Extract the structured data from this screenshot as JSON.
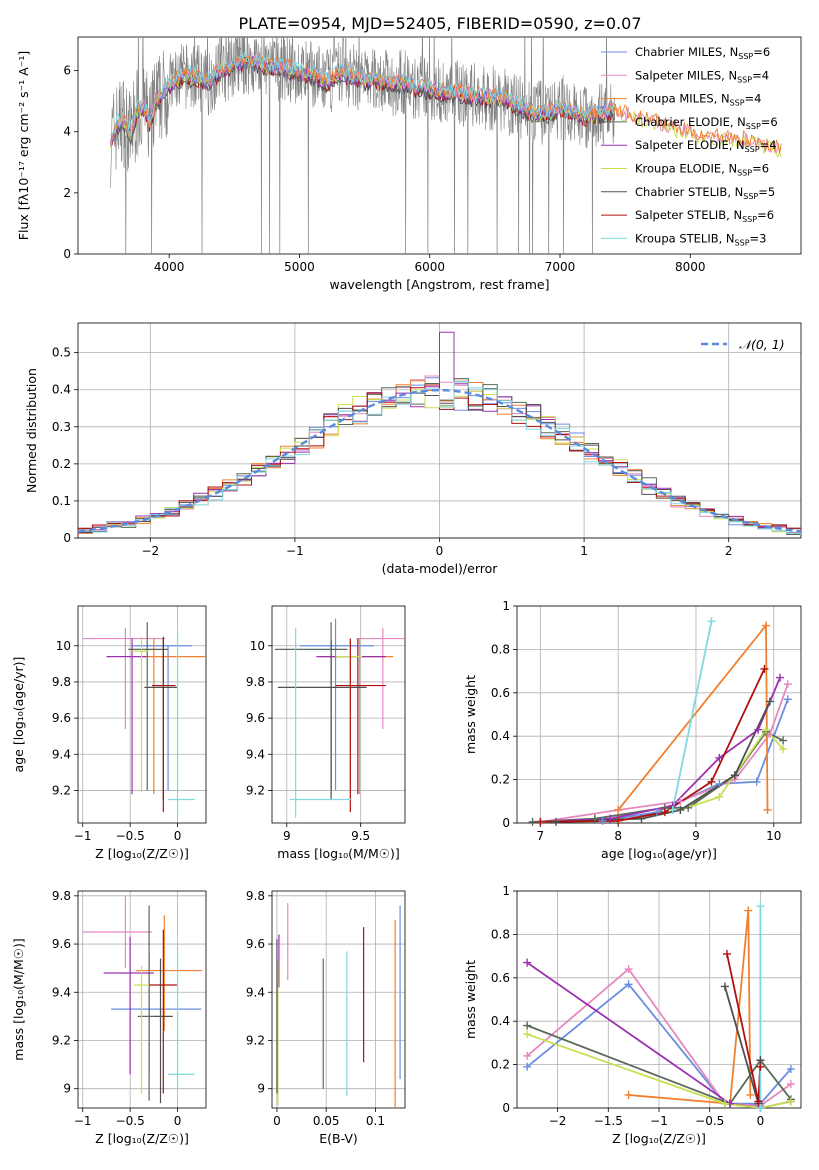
{
  "figure_title": "PLATE=0954, MJD=52405, FIBERID=0590, z=0.07",
  "colors": [
    "#6a8ee0",
    "#e589c0",
    "#f08030",
    "#5a6a5a",
    "#9b30b0",
    "#c8e050",
    "#505050",
    "#b01010",
    "#80d8e0"
  ],
  "chart_data": [
    {
      "id": "spectrum",
      "type": "line",
      "title": "PLATE=0954, MJD=52405, FIBERID=0590, z=0.07",
      "xlabel": "wavelength [Angstrom, rest frame]",
      "ylabel": "Flux [fλ10⁻¹⁷ erg cm⁻² s⁻¹ A⁻¹]",
      "xlim": [
        3300,
        8850
      ],
      "ylim": [
        0,
        7.1
      ],
      "xticks": [
        4000,
        5000,
        6000,
        7000,
        8000
      ],
      "yticks": [
        0,
        2,
        4,
        6
      ],
      "grid": false,
      "legend_position": "top-right",
      "legend": [
        {
          "label": "Chabrier MILES, N",
          "sub": "SSP",
          "suffix": "=6"
        },
        {
          "label": "Salpeter MILES, N",
          "sub": "SSP",
          "suffix": "=4"
        },
        {
          "label": "Kroupa MILES, N",
          "sub": "SSP",
          "suffix": "=4"
        },
        {
          "label": "Chabrier ELODIE, N",
          "sub": "SSP",
          "suffix": "=6"
        },
        {
          "label": "Salpeter ELODIE, N",
          "sub": "SSP",
          "suffix": "=4"
        },
        {
          "label": "Kroupa ELODIE, N",
          "sub": "SSP",
          "suffix": "=6"
        },
        {
          "label": "Chabrier STELIB, N",
          "sub": "SSP",
          "suffix": "=5"
        },
        {
          "label": "Salpeter STELIB, N",
          "sub": "SSP",
          "suffix": "=6"
        },
        {
          "label": "Kroupa STELIB, N",
          "sub": "SSP",
          "suffix": "=3"
        }
      ],
      "data_range": [
        3550,
        7420
      ],
      "model_points": [
        [
          3550,
          3.7
        ],
        [
          3600,
          4.2
        ],
        [
          3650,
          4.4
        ],
        [
          3700,
          3.9
        ],
        [
          3750,
          4.6
        ],
        [
          3800,
          4.8
        ],
        [
          3850,
          4.3
        ],
        [
          3900,
          5.0
        ],
        [
          3950,
          5.2
        ],
        [
          4000,
          5.5
        ],
        [
          4100,
          5.8
        ],
        [
          4200,
          5.8
        ],
        [
          4300,
          5.6
        ],
        [
          4400,
          6.0
        ],
        [
          4500,
          6.2
        ],
        [
          4600,
          6.3
        ],
        [
          4700,
          6.2
        ],
        [
          4800,
          6.1
        ],
        [
          4900,
          6.1
        ],
        [
          5000,
          5.9
        ],
        [
          5100,
          5.9
        ],
        [
          5200,
          5.6
        ],
        [
          5300,
          5.9
        ],
        [
          5400,
          5.8
        ],
        [
          5500,
          5.7
        ],
        [
          5600,
          5.7
        ],
        [
          5700,
          5.6
        ],
        [
          5800,
          5.6
        ],
        [
          5900,
          5.4
        ],
        [
          6000,
          5.4
        ],
        [
          6100,
          5.3
        ],
        [
          6200,
          5.3
        ],
        [
          6300,
          5.2
        ],
        [
          6400,
          5.1
        ],
        [
          6500,
          5.1
        ],
        [
          6600,
          5.0
        ],
        [
          6700,
          4.8
        ],
        [
          6800,
          4.6
        ],
        [
          6900,
          4.6
        ],
        [
          7000,
          4.8
        ],
        [
          7100,
          4.6
        ],
        [
          7200,
          4.5
        ],
        [
          7300,
          4.6
        ],
        [
          7400,
          4.7
        ],
        [
          7600,
          4.4
        ],
        [
          7800,
          4.2
        ],
        [
          8000,
          3.9
        ],
        [
          8200,
          3.8
        ],
        [
          8400,
          3.7
        ],
        [
          8600,
          3.5
        ],
        [
          8700,
          3.4
        ]
      ]
    },
    {
      "id": "residuals",
      "type": "histogram",
      "xlabel": "(data-model)/error",
      "ylabel": "Normed distribution",
      "xlim": [
        -2.5,
        2.5
      ],
      "ylim": [
        0,
        0.58
      ],
      "xticks": [
        -2,
        -1,
        0,
        1,
        2
      ],
      "yticks": [
        0.0,
        0.1,
        0.2,
        0.3,
        0.4,
        0.5
      ],
      "grid": true,
      "legend": "𝒩(0, 1)",
      "legend_position": "top-right",
      "bin_width": 0.1
    },
    {
      "id": "age-vs-Z",
      "type": "errorbar",
      "xlabel": "Z [log₁₀(Z/Z☉)]",
      "ylabel": "age  [log₁₀(age/yr)]",
      "xlim": [
        -1.05,
        0.3
      ],
      "ylim": [
        9.02,
        10.22
      ],
      "xticks": [
        -1.0,
        -0.5,
        0.0
      ],
      "yticks": [
        9.2,
        9.4,
        9.6,
        9.8,
        10.0
      ],
      "grid": true,
      "points": [
        {
          "x": -0.1,
          "xerr": [
            0.38,
            0.25
          ],
          "y": 10.0,
          "yerr": [
            0.8,
            0.0
          ]
        },
        {
          "x": -0.55,
          "xerr": [
            0.45,
            0.42
          ],
          "y": 10.04,
          "yerr": [
            0.5,
            0.06
          ]
        },
        {
          "x": -0.25,
          "xerr": [
            0.15,
            0.55
          ],
          "y": 9.94,
          "yerr": [
            0.76,
            0.1
          ]
        },
        {
          "x": -0.32,
          "xerr": [
            0.2,
            0.22
          ],
          "y": 9.98,
          "yerr": [
            0.78,
            0.15
          ]
        },
        {
          "x": -0.48,
          "xerr": [
            0.27,
            0.15
          ],
          "y": 9.94,
          "yerr": [
            0.76,
            0.1
          ]
        },
        {
          "x": -0.38,
          "xerr": [
            0.1,
            0.08
          ],
          "y": 9.97,
          "yerr": [
            0.78,
            0.08
          ]
        },
        {
          "x": -0.15,
          "xerr": [
            0.2,
            0.15
          ],
          "y": 9.77,
          "yerr": [
            0.62,
            0.28
          ]
        },
        {
          "x": -0.15,
          "xerr": [
            0.12,
            0.13
          ],
          "y": 9.78,
          "yerr": [
            0.7,
            0.26
          ]
        },
        {
          "x": 0.0,
          "xerr": [
            0.1,
            0.18
          ],
          "y": 9.15,
          "yerr": [
            0.1,
            0.95
          ]
        }
      ]
    },
    {
      "id": "age-vs-mass",
      "type": "errorbar",
      "xlabel": "mass [log₁₀(M/M☉)]",
      "ylabel": "",
      "xlim": [
        8.9,
        9.8
      ],
      "ylim": [
        9.02,
        10.22
      ],
      "xticks": [
        9.0,
        9.5
      ],
      "yticks": [
        9.2,
        9.4,
        9.6,
        9.8,
        10.0
      ],
      "grid": true,
      "points": [
        {
          "x": 9.33,
          "xerr": [
            0.24,
            0.26
          ],
          "y": 10.0,
          "yerr": [
            0.8,
            0.15
          ]
        },
        {
          "x": 9.65,
          "xerr": [
            0.18,
            0.15
          ],
          "y": 10.04,
          "yerr": [
            0.5,
            0.06
          ]
        },
        {
          "x": 9.49,
          "xerr": [
            0.25,
            0.23
          ],
          "y": 9.94,
          "yerr": [
            0.76,
            0.1
          ]
        },
        {
          "x": 9.3,
          "xerr": [
            0.38,
            0.11
          ],
          "y": 9.98,
          "yerr": [
            0.78,
            0.15
          ]
        },
        {
          "x": 9.48,
          "xerr": [
            0.28,
            0.19
          ],
          "y": 9.94,
          "yerr": [
            0.76,
            0.1
          ]
        },
        {
          "x": 9.43,
          "xerr": [
            0.1,
            0.08
          ],
          "y": 9.94,
          "yerr": [
            0.76,
            0.1
          ]
        },
        {
          "x": 9.3,
          "xerr": [
            0.36,
            0.24
          ],
          "y": 9.77,
          "yerr": [
            0.62,
            0.26
          ]
        },
        {
          "x": 9.43,
          "xerr": [
            0.1,
            0.24
          ],
          "y": 9.78,
          "yerr": [
            0.7,
            0.26
          ]
        },
        {
          "x": 9.06,
          "xerr": [
            0.04,
            0.38
          ],
          "y": 9.15,
          "yerr": [
            0.1,
            0.95
          ]
        }
      ]
    },
    {
      "id": "massweight-vs-age",
      "type": "line",
      "xlabel": "age  [log₁₀(age/yr)]",
      "ylabel": "mass weight",
      "xlim": [
        6.7,
        10.35
      ],
      "ylim": [
        0,
        1.0
      ],
      "xticks": [
        7,
        8,
        9,
        10
      ],
      "yticks": [
        0.0,
        0.2,
        0.4,
        0.6,
        0.8,
        1.0
      ],
      "grid": true,
      "series": [
        {
          "x": [
            7.0,
            7.8,
            8.5,
            9.3,
            9.78,
            10.18
          ],
          "y": [
            0.005,
            0.01,
            0.05,
            0.18,
            0.19,
            0.57
          ]
        },
        {
          "x": [
            7.0,
            8.0,
            8.8,
            9.5,
            9.95,
            10.18
          ],
          "y": [
            0.005,
            0.06,
            0.1,
            0.2,
            0.41,
            0.64
          ]
        },
        {
          "x": [
            8.0,
            9.9,
            9.92
          ],
          "y": [
            0.06,
            0.91,
            0.06
          ]
        },
        {
          "x": [
            6.9,
            7.7,
            8.6,
            8.9,
            9.5,
            9.9,
            10.12
          ],
          "y": [
            0.005,
            0.02,
            0.07,
            0.07,
            0.22,
            0.42,
            0.38
          ]
        },
        {
          "x": [
            7.0,
            7.9,
            8.7,
            9.3,
            9.8,
            10.08
          ],
          "y": [
            0.005,
            0.02,
            0.08,
            0.3,
            0.43,
            0.67
          ]
        },
        {
          "x": [
            7.0,
            8.0,
            8.8,
            9.3,
            9.9,
            10.12
          ],
          "y": [
            0.005,
            0.01,
            0.06,
            0.12,
            0.43,
            0.34
          ]
        },
        {
          "x": [
            7.2,
            8.3,
            8.8,
            9.5,
            9.95
          ],
          "y": [
            0.005,
            0.02,
            0.06,
            0.22,
            0.56
          ]
        },
        {
          "x": [
            7.0,
            8.0,
            8.6,
            9.2,
            9.88
          ],
          "y": [
            0.005,
            0.01,
            0.05,
            0.19,
            0.71
          ]
        },
        {
          "x": [
            8.7,
            9.2
          ],
          "y": [
            0.06,
            0.93
          ]
        }
      ]
    },
    {
      "id": "mass-vs-Z",
      "type": "errorbar",
      "xlabel": "Z [log₁₀(Z/Z☉)]",
      "ylabel": "mass [log₁₀(M/M☉)]",
      "xlim": [
        -1.05,
        0.3
      ],
      "ylim": [
        8.92,
        9.82
      ],
      "xticks": [
        -1.0,
        -0.5,
        0.0
      ],
      "yticks": [
        9.0,
        9.2,
        9.4,
        9.6,
        9.8
      ],
      "grid": true,
      "points": [
        {
          "x": -0.3,
          "xerr": [
            0.4,
            0.55
          ],
          "y": 9.33,
          "yerr": [
            0.27,
            0.23
          ]
        },
        {
          "x": -0.55,
          "xerr": [
            0.45,
            0.28
          ],
          "y": 9.65,
          "yerr": [
            0.15,
            0.15
          ]
        },
        {
          "x": -0.14,
          "xerr": [
            0.3,
            0.4
          ],
          "y": 9.49,
          "yerr": [
            0.25,
            0.23
          ]
        },
        {
          "x": -0.3,
          "xerr": [
            0.12,
            0.08
          ],
          "y": 9.3,
          "yerr": [
            0.35,
            0.46
          ]
        },
        {
          "x": -0.5,
          "xerr": [
            0.28,
            0.25
          ],
          "y": 9.48,
          "yerr": [
            0.42,
            0.15
          ]
        },
        {
          "x": -0.38,
          "xerr": [
            0.08,
            0.08
          ],
          "y": 9.43,
          "yerr": [
            0.45,
            0.08
          ]
        },
        {
          "x": -0.18,
          "xerr": [
            0.06,
            0.13
          ],
          "y": 9.3,
          "yerr": [
            0.36,
            0.24
          ]
        },
        {
          "x": -0.15,
          "xerr": [
            0.15,
            0.15
          ],
          "y": 9.43,
          "yerr": [
            0.45,
            0.23
          ]
        },
        {
          "x": 0.0,
          "xerr": [
            0.1,
            0.18
          ],
          "y": 9.06,
          "yerr": [
            0.08,
            0.53
          ]
        }
      ]
    },
    {
      "id": "mass-vs-EBV",
      "type": "errorbar",
      "xlabel": "E(B-V)",
      "ylabel": "",
      "xlim": [
        -0.005,
        0.13
      ],
      "ylim": [
        8.92,
        9.82
      ],
      "xticks": [
        0.0,
        0.05,
        0.1
      ],
      "yticks": [
        9.0,
        9.2,
        9.4,
        9.6,
        9.8
      ],
      "grid": true,
      "points": [
        {
          "x": 0.125,
          "xerr": [
            0,
            0
          ],
          "y": 9.4,
          "yerr": [
            0.36,
            0.36
          ]
        },
        {
          "x": 0.011,
          "xerr": [
            0,
            0
          ],
          "y": 9.61,
          "yerr": [
            0.16,
            0.16
          ]
        },
        {
          "x": 0.12,
          "xerr": [
            0,
            0
          ],
          "y": 9.3,
          "yerr": [
            0.4,
            0.4
          ]
        },
        {
          "x": 0.047,
          "xerr": [
            0,
            0
          ],
          "y": 9.27,
          "yerr": [
            0.27,
            0.27
          ]
        },
        {
          "x": 0.002,
          "xerr": [
            0,
            0
          ],
          "y": 9.53,
          "yerr": [
            0.11,
            0.11
          ]
        },
        {
          "x": 0.001,
          "xerr": [
            0,
            0
          ],
          "y": 9.23,
          "yerr": [
            0.3,
            0.3
          ]
        },
        {
          "x": 0.0,
          "xerr": [
            0,
            0
          ],
          "y": 9.3,
          "yerr": [
            0.32,
            0.32
          ]
        },
        {
          "x": 0.088,
          "xerr": [
            0,
            0
          ],
          "y": 9.39,
          "yerr": [
            0.28,
            0.28
          ]
        },
        {
          "x": 0.071,
          "xerr": [
            0,
            0
          ],
          "y": 9.27,
          "yerr": [
            0.3,
            0.3
          ]
        }
      ]
    },
    {
      "id": "massweight-vs-Z",
      "type": "line",
      "xlabel": "Z [log₁₀(Z/Z☉)]",
      "ylabel": "mass weight",
      "xlim": [
        -2.4,
        0.4
      ],
      "ylim": [
        0,
        1.0
      ],
      "xticks": [
        -2.0,
        -1.5,
        -1.0,
        -0.5,
        0.0
      ],
      "yticks": [
        0.0,
        0.2,
        0.4,
        0.6,
        0.8,
        1.0
      ],
      "grid": true,
      "series": [
        {
          "x": [
            -2.3,
            -1.3,
            -0.35,
            0.0,
            0.3
          ],
          "y": [
            0.19,
            0.57,
            0.02,
            0.02,
            0.18
          ]
        },
        {
          "x": [
            -2.3,
            -1.3,
            -0.35,
            0.0,
            0.3
          ],
          "y": [
            0.24,
            0.64,
            0.02,
            0.01,
            0.11
          ]
        },
        {
          "x": [
            -1.3,
            -0.3,
            -0.12,
            -0.1
          ],
          "y": [
            0.06,
            0.02,
            0.91,
            0.06
          ]
        },
        {
          "x": [
            -2.3,
            -0.3,
            0.0,
            0.3
          ],
          "y": [
            0.38,
            0.02,
            0.22,
            0.04
          ]
        },
        {
          "x": [
            -2.3,
            -0.3,
            0.0,
            0.3
          ],
          "y": [
            0.67,
            0.02,
            0.0,
            0.03
          ]
        },
        {
          "x": [
            -2.3,
            -0.35,
            0.0,
            0.3
          ],
          "y": [
            0.34,
            0.02,
            0.0,
            0.03
          ]
        },
        {
          "x": [
            -0.35,
            -0.02,
            0.0
          ],
          "y": [
            0.56,
            0.02,
            0.22
          ]
        },
        {
          "x": [
            -0.33,
            -0.02,
            0.0
          ],
          "y": [
            0.71,
            0.03,
            0.19
          ]
        },
        {
          "x": [
            0.0,
            0.0
          ],
          "y": [
            0.93,
            0.0
          ]
        }
      ]
    }
  ]
}
